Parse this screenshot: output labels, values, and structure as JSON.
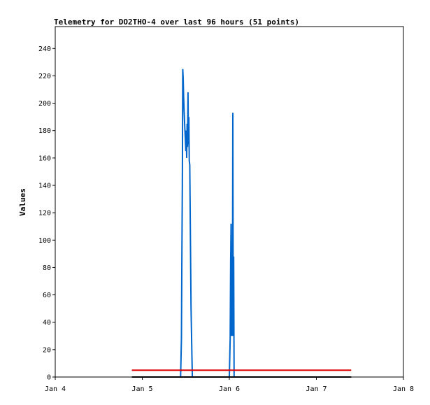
{
  "chart_data": {
    "type": "line",
    "title": "Telemetry for DO2THO-4 over last 96 hours (51 points)",
    "ylabel": "Values",
    "xlabel": "",
    "xlim": [
      0,
      4
    ],
    "ylim": [
      0,
      256
    ],
    "x_ticks": [
      {
        "value": 0,
        "label": "Jan 4"
      },
      {
        "value": 1,
        "label": "Jan 5"
      },
      {
        "value": 2,
        "label": "Jan 6"
      },
      {
        "value": 3,
        "label": "Jan 7"
      },
      {
        "value": 4,
        "label": "Jan 8"
      }
    ],
    "y_ticks": [
      0,
      20,
      40,
      60,
      80,
      100,
      120,
      140,
      160,
      180,
      200,
      220,
      240
    ],
    "grid": false,
    "legend": "none",
    "series": [
      {
        "color": "#0066cc",
        "points": [
          [
            1.44,
            0
          ],
          [
            1.45,
            28
          ],
          [
            1.455,
            85
          ],
          [
            1.46,
            140
          ],
          [
            1.465,
            225
          ],
          [
            1.47,
            218
          ],
          [
            1.475,
            205
          ],
          [
            1.48,
            195
          ],
          [
            1.49,
            180
          ],
          [
            1.5,
            165
          ],
          [
            1.505,
            180
          ],
          [
            1.51,
            160
          ],
          [
            1.515,
            185
          ],
          [
            1.52,
            168
          ],
          [
            1.525,
            208
          ],
          [
            1.53,
            170
          ],
          [
            1.535,
            190
          ],
          [
            1.54,
            158
          ],
          [
            1.545,
            155
          ],
          [
            1.55,
            122
          ],
          [
            1.555,
            87
          ],
          [
            1.56,
            52
          ],
          [
            1.57,
            15
          ],
          [
            1.575,
            0
          ],
          [
            2.0,
            0
          ],
          [
            2.01,
            28
          ],
          [
            2.015,
            85
          ],
          [
            2.02,
            112
          ],
          [
            2.025,
            30
          ],
          [
            2.03,
            85
          ],
          [
            2.035,
            30
          ],
          [
            2.04,
            193
          ],
          [
            2.045,
            30
          ],
          [
            2.05,
            88
          ],
          [
            2.055,
            0
          ]
        ]
      },
      {
        "color": "#dd0000",
        "points": [
          [
            0.88,
            5
          ],
          [
            3.4,
            5
          ]
        ]
      },
      {
        "color": "#000000",
        "points": [
          [
            0.88,
            0
          ],
          [
            3.4,
            0
          ]
        ]
      }
    ]
  }
}
